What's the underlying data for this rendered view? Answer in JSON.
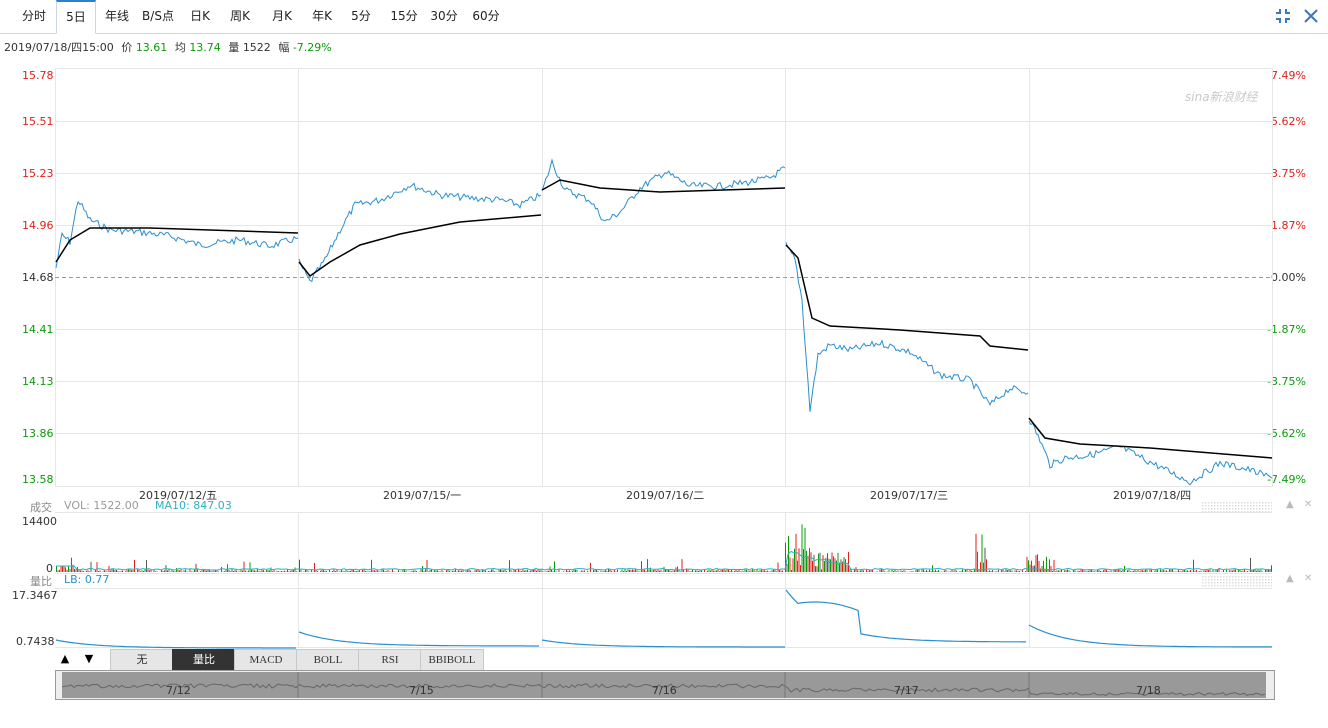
{
  "tabs": [
    {
      "label": "分时",
      "active": false
    },
    {
      "label": "5日",
      "active": true
    },
    {
      "label": "年线",
      "active": false
    },
    {
      "label": "B/S点",
      "active": false
    },
    {
      "label": "日K",
      "active": false
    },
    {
      "label": "周K",
      "active": false
    },
    {
      "label": "月K",
      "active": false
    },
    {
      "label": "年K",
      "active": false
    },
    {
      "label": "5分",
      "active": false
    },
    {
      "label": "15分",
      "active": false
    },
    {
      "label": "30分",
      "active": false
    },
    {
      "label": "60分",
      "active": false
    }
  ],
  "info": {
    "datetime": "2019/07/18/四15:00",
    "price_label": "价",
    "price": "13.61",
    "avg_label": "均",
    "avg": "13.74",
    "vol_label": "量",
    "vol": "1522",
    "change_label": "幅",
    "change": "-7.29%"
  },
  "price_axis": [
    "15.78",
    "15.51",
    "15.23",
    "14.96",
    "14.68",
    "14.41",
    "14.13",
    "13.86",
    "13.58"
  ],
  "pct_axis": [
    "7.49%",
    "5.62%",
    "3.75%",
    "1.87%",
    "0.00%",
    "-1.87%",
    "-3.75%",
    "-5.62%",
    "-7.49%"
  ],
  "watermark": "sina新浪财经",
  "date_labels": [
    "2019/07/12/五",
    "2019/07/15/一",
    "2019/07/16/二",
    "2019/07/17/三",
    "2019/07/18/四"
  ],
  "volume": {
    "title": "成交",
    "vol_text": "VOL: 1522.00",
    "ma_text": "MA10: 847.03",
    "top": "14400",
    "bottom": "0"
  },
  "ratio": {
    "title": "量比",
    "lb_text": "LB: 0.77",
    "top": "17.3467",
    "bottom": "0.7438"
  },
  "indicator_tabs": [
    {
      "label": "无",
      "active": false
    },
    {
      "label": "量比",
      "active": true
    },
    {
      "label": "MACD",
      "active": false
    },
    {
      "label": "BOLL",
      "active": false
    },
    {
      "label": "RSI",
      "active": false
    },
    {
      "label": "BBIBOLL",
      "active": false
    }
  ],
  "nav_days": [
    "7/12",
    "7/15",
    "7/16",
    "7/17",
    "7/18"
  ],
  "colors": {
    "up": "#e0201a",
    "down": "#0a9b0a",
    "price_line": "#2a8fcf",
    "avg_line": "#000000",
    "grid": "#e8e8e8",
    "accent": "#2f7fd0"
  },
  "icons": {
    "collapse": "collapse-icon",
    "close": "close-icon",
    "up": "triangle-up-icon",
    "down": "triangle-down-icon"
  }
}
